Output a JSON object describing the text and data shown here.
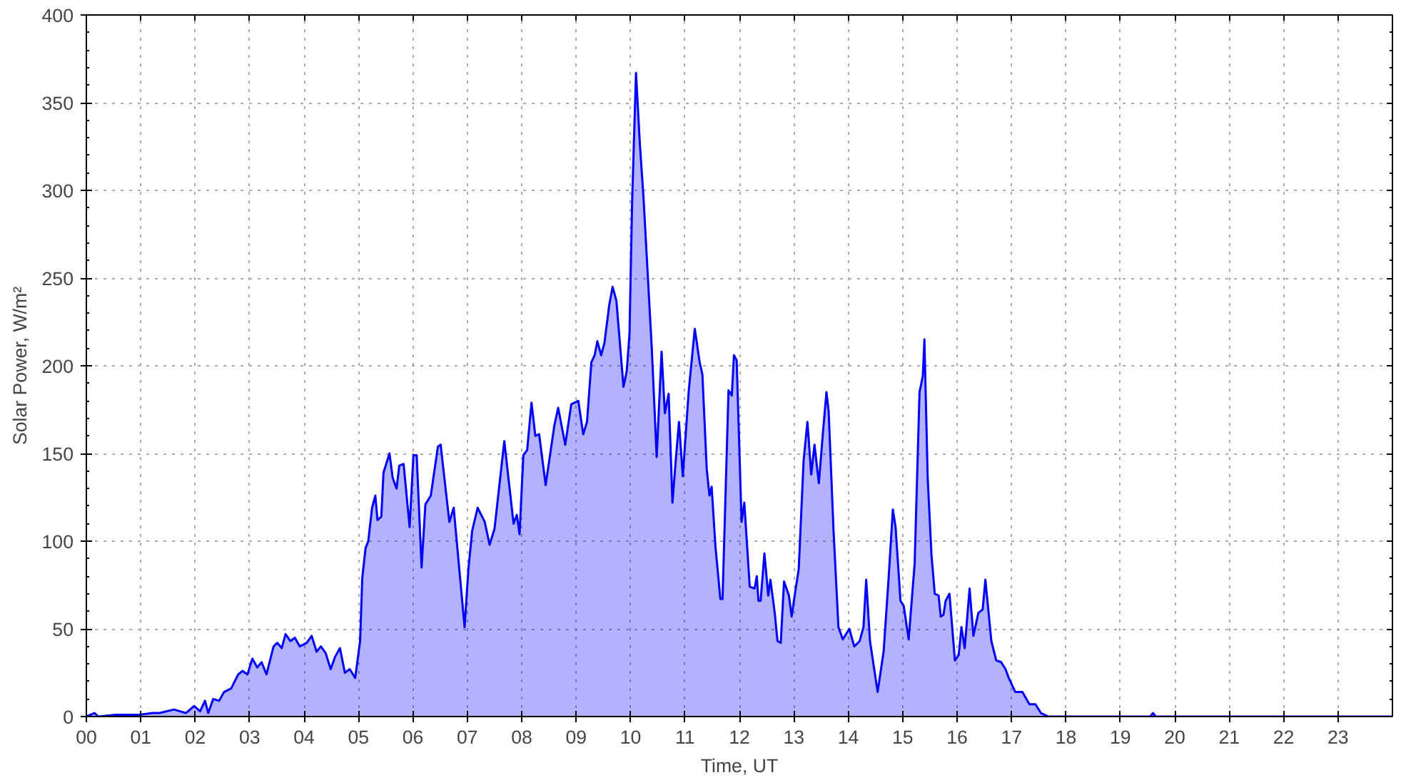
{
  "chart_data": {
    "type": "area",
    "xlabel": "Time, UT",
    "ylabel": "Solar Power, W/m²",
    "xlim": [
      0,
      24
    ],
    "ylim": [
      0,
      400
    ],
    "xticks": [
      {
        "value": 0,
        "label": "00"
      },
      {
        "value": 1,
        "label": "01"
      },
      {
        "value": 2,
        "label": "02"
      },
      {
        "value": 3,
        "label": "03"
      },
      {
        "value": 4,
        "label": "04"
      },
      {
        "value": 5,
        "label": "05"
      },
      {
        "value": 6,
        "label": "06"
      },
      {
        "value": 7,
        "label": "07"
      },
      {
        "value": 8,
        "label": "08"
      },
      {
        "value": 9,
        "label": "09"
      },
      {
        "value": 10,
        "label": "10"
      },
      {
        "value": 11,
        "label": "11"
      },
      {
        "value": 12,
        "label": "12"
      },
      {
        "value": 13,
        "label": "13"
      },
      {
        "value": 14,
        "label": "14"
      },
      {
        "value": 15,
        "label": "15"
      },
      {
        "value": 16,
        "label": "16"
      },
      {
        "value": 17,
        "label": "17"
      },
      {
        "value": 18,
        "label": "18"
      },
      {
        "value": 19,
        "label": "19"
      },
      {
        "value": 20,
        "label": "20"
      },
      {
        "value": 21,
        "label": "21"
      },
      {
        "value": 22,
        "label": "22"
      },
      {
        "value": 23,
        "label": "23"
      }
    ],
    "yticks": [
      0,
      50,
      100,
      150,
      200,
      250,
      300,
      350,
      400
    ],
    "grid": true,
    "x": [
      0,
      0.15,
      0.22,
      0.55,
      0.98,
      1.22,
      1.35,
      1.61,
      1.83,
      1.98,
      2.09,
      2.18,
      2.24,
      2.33,
      2.44,
      2.53,
      2.66,
      2.79,
      2.87,
      2.96,
      3.05,
      3.14,
      3.22,
      3.31,
      3.44,
      3.51,
      3.59,
      3.66,
      3.75,
      3.83,
      3.92,
      4.05,
      4.14,
      4.23,
      4.31,
      4.4,
      4.49,
      4.57,
      4.66,
      4.75,
      4.84,
      4.94,
      5.03,
      5.07,
      5.13,
      5.18,
      5.25,
      5.31,
      5.35,
      5.42,
      5.46,
      5.57,
      5.63,
      5.7,
      5.75,
      5.83,
      5.94,
      6.01,
      6.07,
      6.16,
      6.23,
      6.33,
      6.46,
      6.51,
      6.67,
      6.75,
      6.95,
      7.02,
      7.09,
      7.19,
      7.32,
      7.41,
      7.5,
      7.68,
      7.85,
      7.91,
      7.96,
      8.03,
      8.1,
      8.18,
      8.25,
      8.32,
      8.44,
      8.6,
      8.67,
      8.8,
      8.91,
      9.04,
      9.13,
      9.2,
      9.28,
      9.34,
      9.39,
      9.46,
      9.52,
      9.61,
      9.67,
      9.74,
      9.87,
      9.93,
      9.98,
      10.03,
      10.1,
      10.17,
      10.24,
      10.39,
      10.48,
      10.57,
      10.63,
      10.7,
      10.77,
      10.83,
      10.89,
      10.96,
      11.07,
      11.18,
      11.27,
      11.32,
      11.4,
      11.45,
      11.49,
      11.56,
      11.65,
      11.69,
      11.8,
      11.86,
      11.9,
      11.95,
      12.04,
      12.09,
      12.19,
      12.28,
      12.32,
      12.35,
      12.39,
      12.46,
      12.53,
      12.57,
      12.65,
      12.7,
      12.76,
      12.82,
      12.91,
      12.96,
      13.03,
      13.09,
      13.18,
      13.25,
      13.32,
      13.38,
      13.46,
      13.53,
      13.6,
      13.64,
      13.73,
      13.82,
      13.9,
      14.02,
      14.11,
      14.21,
      14.28,
      14.33,
      14.4,
      14.54,
      14.65,
      14.74,
      14.82,
      14.87,
      14.96,
      15.02,
      15.11,
      15.22,
      15.31,
      15.37,
      15.4,
      15.46,
      15.53,
      15.59,
      15.66,
      15.7,
      15.75,
      15.79,
      15.86,
      15.96,
      16.03,
      16.08,
      16.14,
      16.23,
      16.3,
      16.39,
      16.47,
      16.52,
      16.63,
      16.72,
      16.81,
      16.89,
      16.95,
      17.07,
      17.2,
      17.33,
      17.44,
      17.54,
      17.68,
      19.55,
      19.6,
      19.65,
      24
    ],
    "series": [
      {
        "color": "#0000ff",
        "values": [
          0,
          2,
          0,
          1,
          1,
          2,
          2,
          4,
          2,
          6,
          3,
          9,
          2,
          10,
          9,
          14,
          16,
          24,
          26,
          24,
          33,
          28,
          31,
          24,
          40,
          42,
          39,
          47,
          43,
          45,
          40,
          42,
          46,
          37,
          40,
          36,
          27,
          34,
          39,
          25,
          27,
          22,
          43,
          79,
          96,
          100,
          119,
          126,
          112,
          114,
          139,
          150,
          136,
          130,
          143,
          144,
          108,
          149,
          149,
          85,
          121,
          126,
          154,
          155,
          111,
          119,
          51,
          84,
          106,
          119,
          111,
          98,
          107,
          157,
          110,
          115,
          104,
          149,
          152,
          179,
          160,
          161,
          132,
          166,
          176,
          155,
          178,
          180,
          161,
          168,
          202,
          206,
          214,
          206,
          213,
          235,
          245,
          237,
          188,
          197,
          218,
          295,
          367,
          327,
          295,
          210,
          148,
          208,
          173,
          184,
          122,
          146,
          168,
          137,
          186,
          221,
          202,
          195,
          141,
          126,
          131,
          97,
          67,
          67,
          186,
          183,
          206,
          203,
          111,
          122,
          74,
          73,
          80,
          66,
          66,
          93,
          69,
          78,
          59,
          43,
          42,
          77,
          69,
          57,
          72,
          84,
          146,
          168,
          138,
          155,
          133,
          160,
          185,
          174,
          106,
          51,
          44,
          50,
          40,
          43,
          51,
          78,
          43,
          14,
          37,
          78,
          118,
          108,
          66,
          63,
          44,
          87,
          185,
          194,
          215,
          136,
          92,
          70,
          69,
          57,
          58,
          66,
          70,
          32,
          35,
          51,
          39,
          73,
          46,
          59,
          61,
          78,
          43,
          32,
          31,
          27,
          22,
          14,
          14,
          7,
          7,
          2,
          0,
          0,
          2,
          0,
          0
        ]
      }
    ]
  }
}
